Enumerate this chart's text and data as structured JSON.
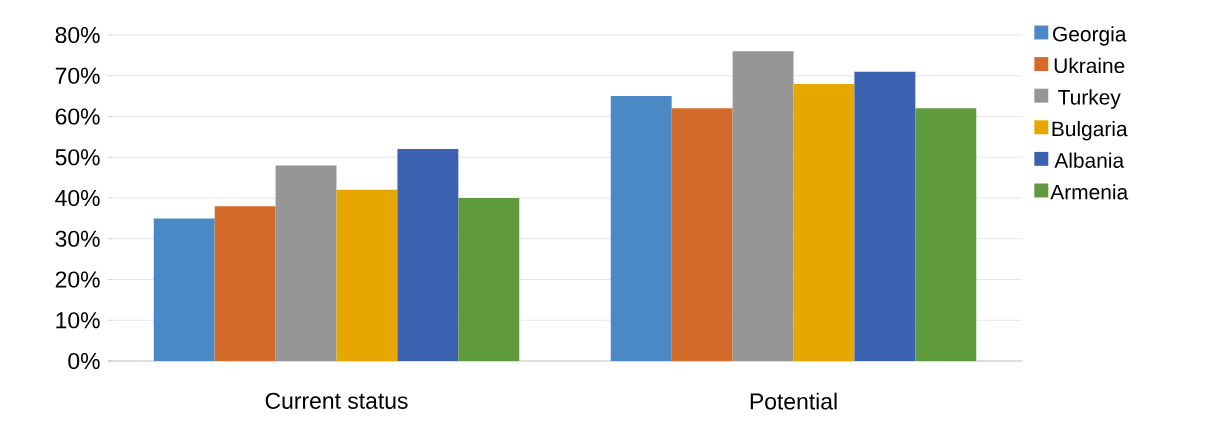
{
  "chart_data": {
    "type": "bar",
    "categories": [
      "Current status",
      "Potential"
    ],
    "series": [
      {
        "name": "Georgia",
        "color": "#4a89c5",
        "values": [
          35,
          65
        ]
      },
      {
        "name": "Ukraine",
        "color": "#d46b2a",
        "values": [
          38,
          62
        ]
      },
      {
        "name": "Turkey",
        "color": "#969696",
        "values": [
          48,
          76
        ]
      },
      {
        "name": "Bulgaria",
        "color": "#e6a800",
        "values": [
          42,
          68
        ]
      },
      {
        "name": "Albania",
        "color": "#3a62b0",
        "values": [
          52,
          71
        ]
      },
      {
        "name": "Armenia",
        "color": "#5f9a3c",
        "values": [
          40,
          62
        ]
      }
    ],
    "ylim": [
      0,
      80
    ],
    "yticks": [
      {
        "value": 0,
        "label": "0%"
      },
      {
        "value": 10,
        "label": "10%"
      },
      {
        "value": 20,
        "label": "20%"
      },
      {
        "value": 30,
        "label": "30%"
      },
      {
        "value": 40,
        "label": "40%"
      },
      {
        "value": 50,
        "label": "50%"
      },
      {
        "value": 60,
        "label": "60%"
      },
      {
        "value": 70,
        "label": "70%"
      },
      {
        "value": 80,
        "label": "80%"
      }
    ],
    "grid": "y",
    "legend": "right"
  }
}
